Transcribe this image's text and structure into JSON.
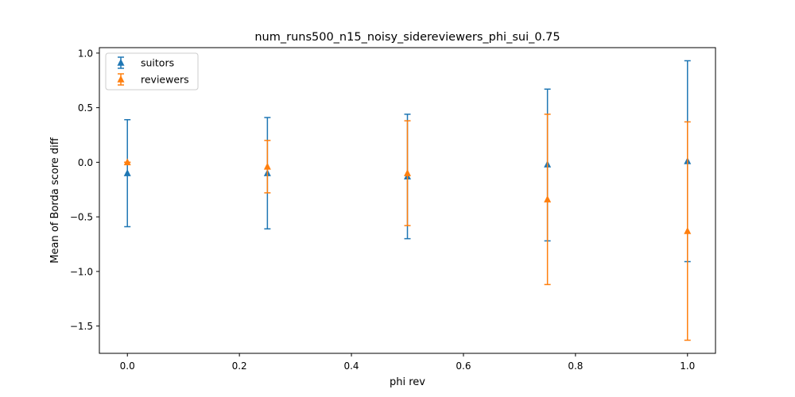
{
  "chart_data": {
    "type": "scatter",
    "title": "num_runs500_n15_noisy_sidereviewers_phi_sui_0.75",
    "xlabel": "phi rev",
    "ylabel": "Mean of Borda score diff",
    "xlim": [
      -0.05,
      1.05
    ],
    "ylim": [
      -1.75,
      1.05
    ],
    "xticks": [
      0.0,
      0.2,
      0.4,
      0.6,
      0.8,
      1.0
    ],
    "xtick_labels": [
      "0.0",
      "0.2",
      "0.4",
      "0.6",
      "0.8",
      "1.0"
    ],
    "yticks": [
      -1.5,
      -1.0,
      -0.5,
      0.0,
      0.5,
      1.0
    ],
    "ytick_labels": [
      "−1.5",
      "−1.0",
      "−0.5",
      "0.0",
      "0.5",
      "1.0"
    ],
    "grid": false,
    "legend_position": "upper-left",
    "series": [
      {
        "name": "suitors",
        "color": "#1f77b4",
        "marker": "triangle-up",
        "x": [
          0.0,
          0.25,
          0.5,
          0.75,
          1.0
        ],
        "y": [
          -0.1,
          -0.1,
          -0.13,
          -0.02,
          0.01
        ],
        "err_low": [
          -0.59,
          -0.61,
          -0.7,
          -0.72,
          -0.91
        ],
        "err_high": [
          0.39,
          0.41,
          0.44,
          0.67,
          0.93
        ]
      },
      {
        "name": "reviewers",
        "color": "#ff7f0e",
        "marker": "triangle-up",
        "x": [
          0.0,
          0.25,
          0.5,
          0.75,
          1.0
        ],
        "y": [
          0.0,
          -0.04,
          -0.1,
          -0.34,
          -0.63
        ],
        "err_low": [
          0.0,
          -0.28,
          -0.58,
          -1.12,
          -1.63
        ],
        "err_high": [
          0.0,
          0.2,
          0.38,
          0.44,
          0.37
        ]
      }
    ]
  }
}
